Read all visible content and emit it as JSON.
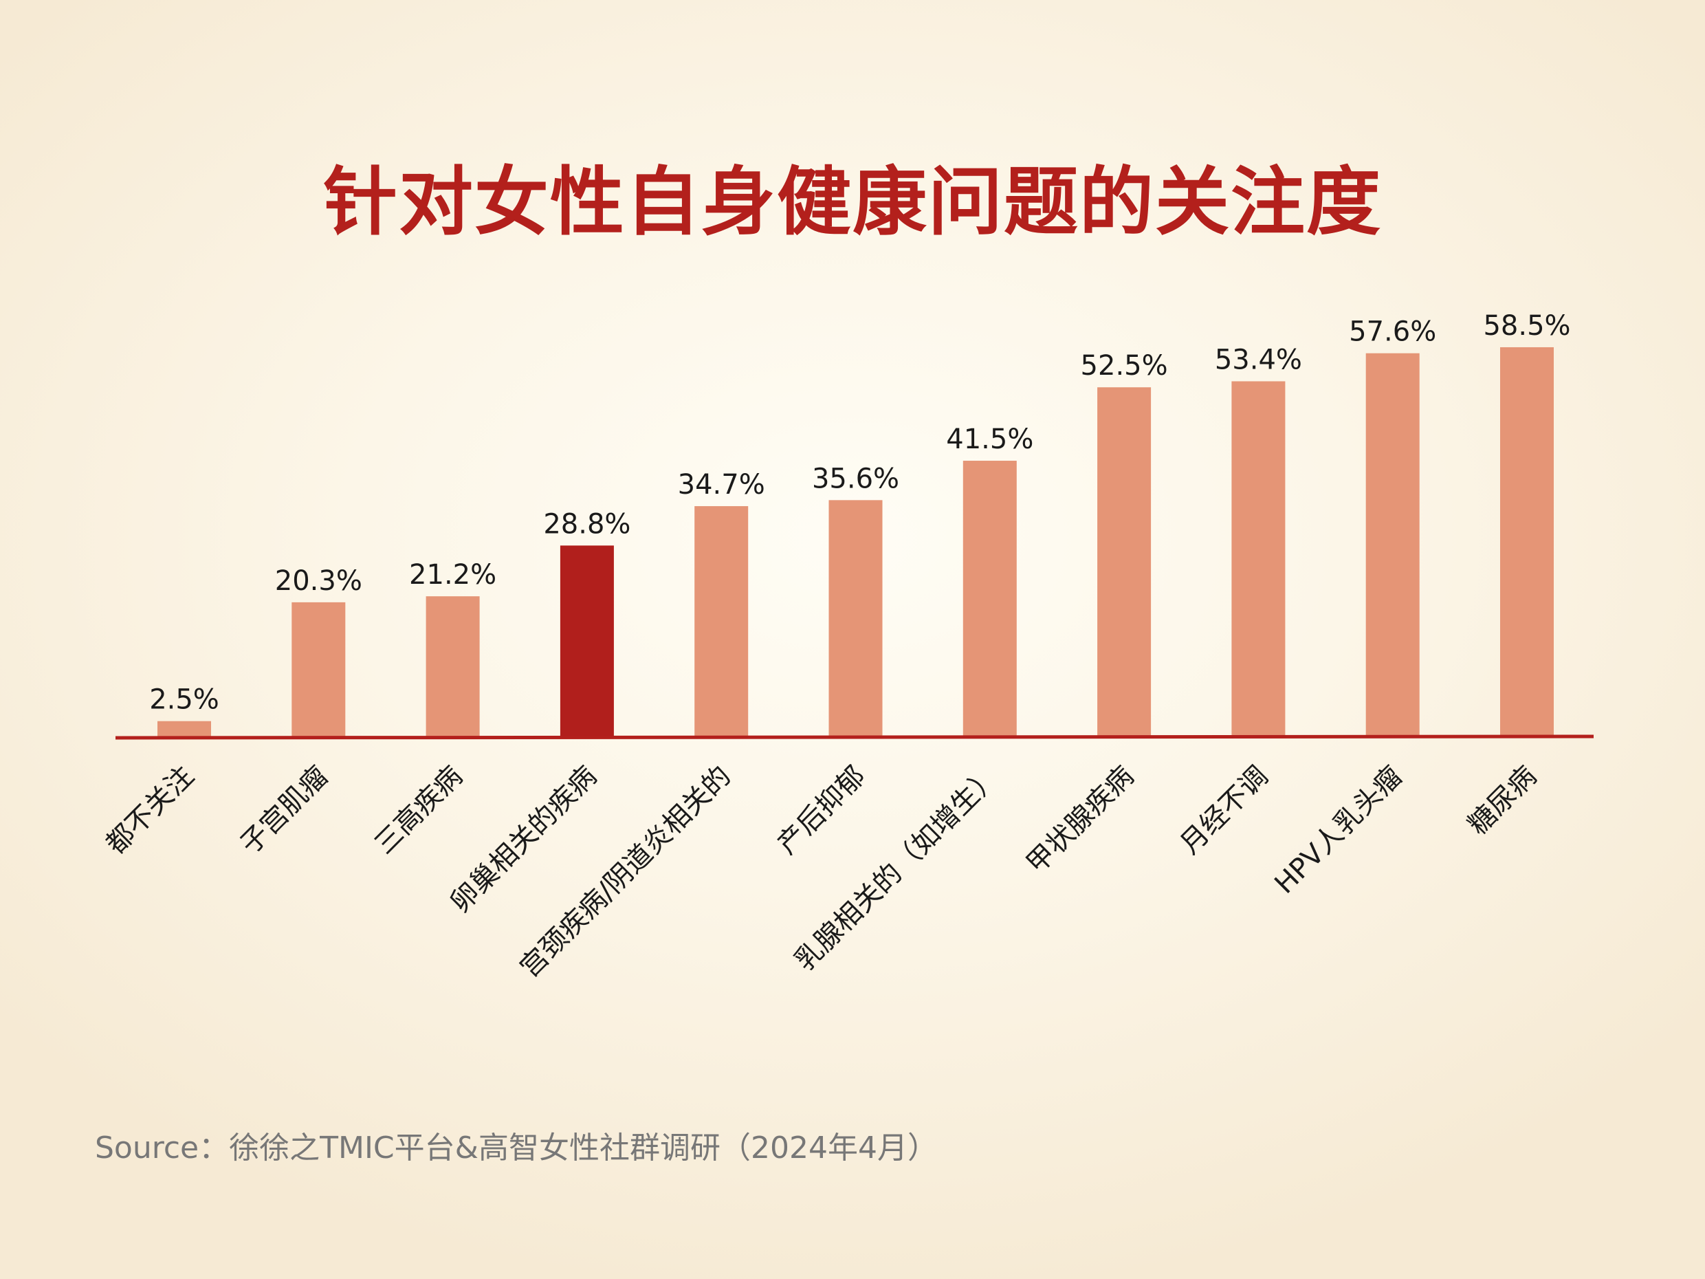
{
  "chart_data": {
    "type": "bar",
    "title": "针对女性自身健康问题的关注度",
    "categories": [
      "都不关注",
      "子宫肌瘤",
      "三高疾病",
      "卵巢相关的疾病",
      "宫颈疾病/阴道炎相关的",
      "产后抑郁",
      "乳腺相关的（如增生）",
      "甲状腺疾病",
      "月经不调",
      "HPV人乳头瘤",
      "糖尿病"
    ],
    "values": [
      2.5,
      20.3,
      21.2,
      28.8,
      34.7,
      35.6,
      41.5,
      52.5,
      53.4,
      57.6,
      58.5
    ],
    "value_labels": [
      "2.5%",
      "20.3%",
      "21.2%",
      "28.8%",
      "34.7%",
      "35.6%",
      "41.5%",
      "52.5%",
      "53.4%",
      "57.6%",
      "58.5%"
    ],
    "unit": "%",
    "ylim": [
      0,
      62
    ],
    "highlight_index": 3,
    "colors": {
      "bar": "#e59576",
      "highlight": "#b11f1c",
      "axis": "#b3201c",
      "title": "#b3201c",
      "label": "#1a1a1a"
    },
    "grid": false
  },
  "source": "Source：徐徐之TMIC平台&高智女性社群调研（2024年4月）"
}
